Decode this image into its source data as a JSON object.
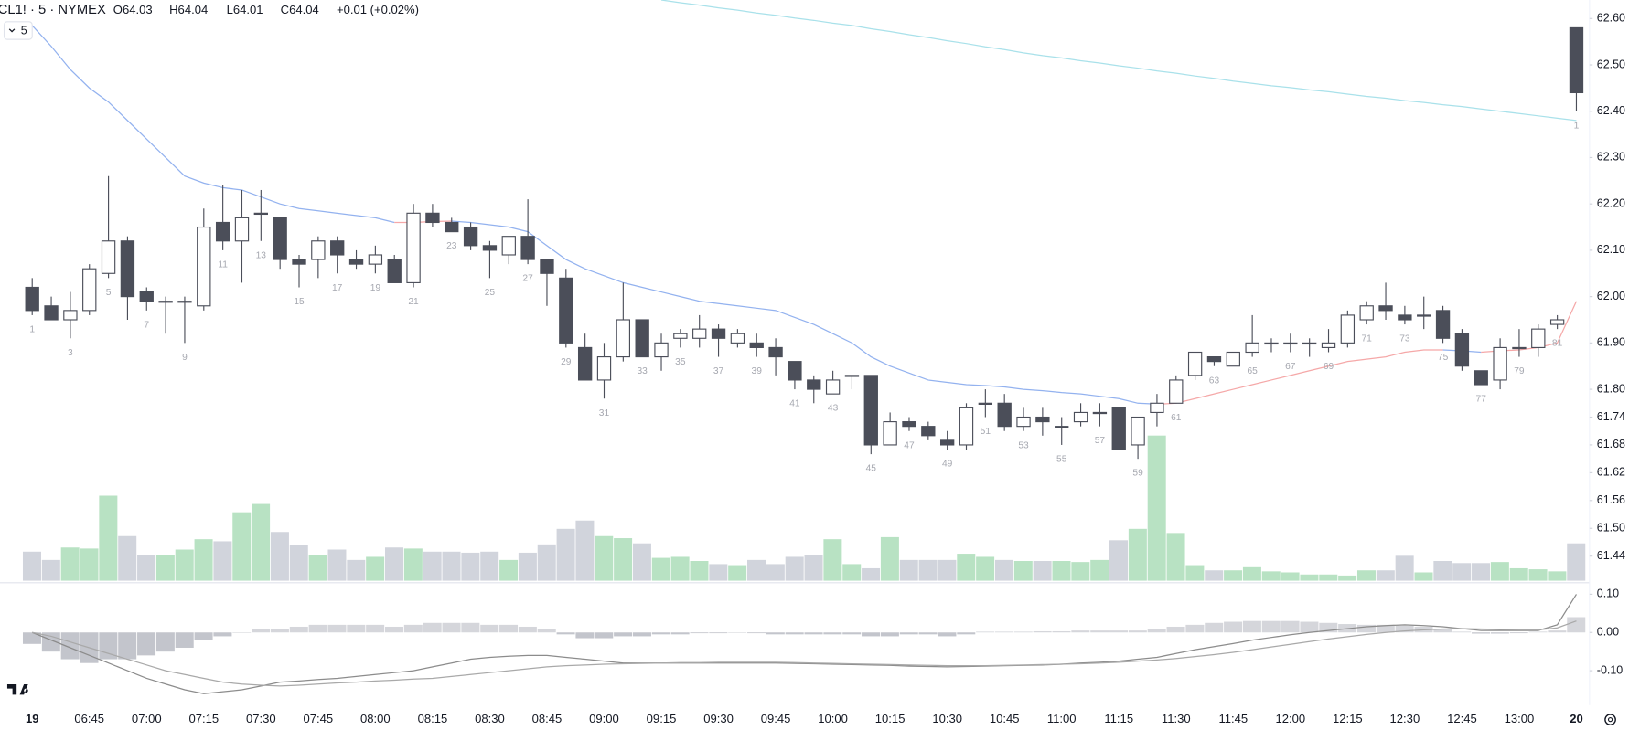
{
  "header": {
    "symbol": "CL1! · 5 · NYMEX",
    "open": "O64.03",
    "high": "H64.04",
    "low": "L64.01",
    "close": "C64.04",
    "change": "+0.01 (+0.02%)",
    "interval": "5"
  },
  "chart_data": [
    {
      "type": "candlestick",
      "categories": [
        "19",
        null,
        null,
        "06:45",
        null,
        null,
        "07:00",
        null,
        null,
        "07:15",
        null,
        null,
        "07:30",
        null,
        null,
        "07:45",
        null,
        null,
        "08:00",
        null,
        null,
        "08:15",
        null,
        null,
        "08:30",
        null,
        null,
        "08:45",
        null,
        null,
        "09:00",
        null,
        null,
        "09:15",
        null,
        null,
        "09:30",
        null,
        null,
        "09:45",
        null,
        null,
        "10:00",
        null,
        null,
        "10:15",
        null,
        null,
        "10:30",
        null,
        null,
        "10:45",
        null,
        null,
        "11:00",
        null,
        null,
        "11:15",
        null,
        null,
        "11:30",
        null,
        null,
        "11:45",
        null,
        null,
        "12:00",
        null,
        null,
        "12:15",
        null,
        null,
        "12:30",
        null,
        null,
        "12:45",
        null,
        null,
        "13:00",
        null,
        null,
        "20"
      ],
      "open": [
        62.02,
        61.98,
        61.95,
        61.97,
        62.05,
        62.12,
        62.01,
        61.99,
        61.99,
        61.98,
        62.16,
        62.12,
        62.18,
        62.17,
        62.08,
        62.08,
        62.12,
        62.08,
        62.07,
        62.08,
        62.03,
        62.18,
        62.16,
        62.15,
        62.11,
        62.09,
        62.13,
        62.08,
        62.04,
        61.89,
        61.82,
        61.87,
        61.95,
        61.87,
        61.91,
        61.91,
        61.93,
        61.9,
        61.9,
        61.89,
        61.86,
        61.82,
        61.79,
        61.83,
        61.83,
        61.68,
        61.73,
        61.72,
        61.69,
        61.68,
        61.77,
        61.77,
        61.72,
        61.74,
        61.72,
        61.73,
        61.75,
        61.76,
        61.68,
        61.75,
        61.77,
        61.83,
        61.87,
        61.85,
        61.88,
        61.9,
        61.9,
        61.9,
        61.89,
        61.9,
        61.95,
        61.98,
        61.96,
        61.96,
        61.97,
        61.92,
        61.84,
        61.82,
        61.89,
        61.89,
        61.94,
        62.58
      ],
      "high": [
        62.04,
        62.0,
        62.01,
        62.07,
        62.26,
        62.13,
        62.02,
        62.0,
        62.0,
        62.19,
        62.24,
        62.23,
        62.23,
        62.17,
        62.09,
        62.13,
        62.13,
        62.1,
        62.11,
        62.09,
        62.2,
        62.2,
        62.17,
        62.16,
        62.12,
        62.13,
        62.21,
        62.08,
        62.06,
        61.92,
        61.9,
        62.03,
        61.95,
        61.92,
        61.93,
        61.96,
        61.94,
        61.93,
        61.92,
        61.91,
        61.86,
        61.83,
        61.84,
        61.83,
        61.83,
        61.75,
        61.74,
        61.73,
        61.71,
        61.77,
        61.8,
        61.79,
        61.76,
        61.76,
        61.74,
        61.77,
        61.77,
        61.76,
        61.74,
        61.79,
        61.83,
        61.88,
        61.87,
        61.88,
        61.96,
        61.91,
        61.92,
        61.91,
        61.93,
        61.97,
        61.99,
        62.03,
        61.98,
        62.0,
        61.98,
        61.93,
        61.84,
        61.91,
        61.93,
        61.94,
        61.96,
        62.58
      ],
      "low": [
        61.96,
        61.95,
        61.91,
        61.96,
        62.04,
        61.95,
        61.97,
        61.92,
        61.9,
        61.97,
        62.1,
        62.03,
        62.12,
        62.06,
        62.02,
        62.04,
        62.05,
        62.06,
        62.05,
        62.03,
        62.02,
        62.15,
        62.14,
        62.1,
        62.04,
        62.07,
        62.07,
        61.98,
        61.89,
        61.82,
        61.78,
        61.86,
        61.87,
        61.84,
        61.89,
        61.89,
        61.87,
        61.89,
        61.87,
        61.83,
        61.8,
        61.77,
        61.79,
        61.8,
        61.66,
        61.68,
        61.71,
        61.69,
        61.67,
        61.67,
        61.74,
        61.71,
        61.71,
        61.7,
        61.68,
        61.72,
        61.72,
        61.67,
        61.65,
        61.72,
        61.77,
        61.82,
        61.85,
        61.85,
        61.87,
        61.88,
        61.88,
        61.87,
        61.88,
        61.89,
        61.94,
        61.95,
        61.94,
        61.93,
        61.9,
        61.84,
        61.81,
        61.8,
        61.87,
        61.87,
        61.93,
        62.4
      ],
      "close": [
        61.97,
        61.95,
        61.97,
        62.06,
        62.12,
        62.0,
        61.99,
        61.99,
        61.99,
        62.15,
        62.12,
        62.17,
        62.18,
        62.08,
        62.07,
        62.12,
        62.09,
        62.07,
        62.09,
        62.03,
        62.18,
        62.16,
        62.14,
        62.11,
        62.1,
        62.13,
        62.08,
        62.05,
        61.9,
        61.82,
        61.87,
        61.95,
        61.87,
        61.9,
        61.92,
        61.93,
        61.91,
        61.92,
        61.89,
        61.87,
        61.82,
        61.8,
        61.82,
        61.83,
        61.68,
        61.73,
        61.72,
        61.7,
        61.68,
        61.76,
        61.77,
        61.72,
        61.74,
        61.73,
        61.72,
        61.75,
        61.75,
        61.67,
        61.74,
        61.77,
        61.82,
        61.88,
        61.86,
        61.88,
        61.9,
        61.9,
        61.9,
        61.9,
        61.9,
        61.96,
        61.98,
        61.97,
        61.95,
        61.96,
        61.91,
        61.85,
        61.81,
        61.89,
        61.89,
        61.93,
        61.95,
        62.44
      ],
      "bar_numbers": [
        1,
        null,
        3,
        null,
        5,
        null,
        7,
        null,
        9,
        null,
        11,
        null,
        13,
        null,
        15,
        null,
        17,
        null,
        19,
        null,
        21,
        null,
        23,
        null,
        25,
        null,
        27,
        null,
        29,
        null,
        31,
        null,
        33,
        null,
        35,
        null,
        37,
        null,
        39,
        null,
        41,
        null,
        43,
        null,
        45,
        null,
        47,
        null,
        49,
        null,
        51,
        null,
        53,
        null,
        55,
        null,
        57,
        null,
        59,
        null,
        61,
        null,
        63,
        null,
        65,
        null,
        67,
        null,
        69,
        null,
        71,
        null,
        73,
        null,
        75,
        null,
        77,
        null,
        79,
        null,
        81,
        1
      ],
      "up_color": "#ffffff",
      "down_color": "#4b4e59",
      "volume": {
        "values": [
          28,
          20,
          32,
          31,
          82,
          43,
          25,
          25,
          30,
          40,
          38,
          66,
          74,
          47,
          34,
          25,
          30,
          20,
          23,
          32,
          31,
          28,
          28,
          27,
          28,
          20,
          27,
          35,
          50,
          58,
          43,
          41,
          36,
          22,
          23,
          19,
          16,
          15,
          20,
          16,
          23,
          25,
          40,
          16,
          12,
          42,
          20,
          20,
          20,
          26,
          23,
          20,
          19,
          19,
          19,
          18,
          20,
          39,
          50,
          140,
          46,
          15,
          10,
          10,
          13,
          9,
          8,
          6,
          6,
          5,
          10,
          10,
          24,
          8,
          19,
          17,
          17,
          18,
          12,
          11,
          9,
          36
        ],
        "up_color": "#b8e2c3",
        "down_color": "#d1d4dc"
      },
      "lines": [
        {
          "rising_color": "#f5a8a8",
          "falling_color": "#93b2ef",
          "values": [
            62.585,
            62.54,
            62.49,
            62.45,
            62.42,
            62.38,
            62.34,
            62.3,
            62.26,
            62.245,
            62.235,
            62.23,
            62.215,
            62.2,
            62.19,
            62.185,
            62.18,
            62.175,
            62.17,
            62.16,
            62.16,
            62.162,
            62.163,
            62.16,
            62.155,
            62.15,
            62.14,
            62.11,
            62.08,
            62.06,
            62.045,
            62.03,
            62.02,
            62.01,
            62.0,
            61.99,
            61.985,
            61.98,
            61.975,
            61.97,
            61.955,
            61.94,
            61.92,
            61.9,
            61.87,
            61.85,
            61.835,
            61.82,
            61.815,
            61.81,
            61.808,
            61.805,
            61.8,
            61.797,
            61.793,
            61.79,
            61.785,
            61.78,
            61.77,
            61.768,
            61.77,
            61.78,
            61.79,
            61.8,
            61.81,
            61.82,
            61.83,
            61.84,
            61.85,
            61.86,
            61.865,
            61.87,
            61.88,
            61.885,
            61.885,
            61.883,
            61.88,
            61.883,
            61.885,
            61.89,
            61.9,
            61.99
          ]
        },
        {
          "rising_color": "#a9e1ea",
          "falling_color": "#a9e1ea",
          "values": [
            null,
            null,
            null,
            null,
            null,
            null,
            null,
            null,
            null,
            null,
            null,
            null,
            null,
            null,
            null,
            null,
            null,
            null,
            null,
            null,
            null,
            null,
            null,
            null,
            null,
            null,
            null,
            null,
            null,
            null,
            null,
            null,
            null,
            62.64,
            62.634,
            62.629,
            62.623,
            62.618,
            62.612,
            62.607,
            62.601,
            62.596,
            62.59,
            62.585,
            62.578,
            62.572,
            62.565,
            62.559,
            62.552,
            62.546,
            62.539,
            62.533,
            62.526,
            62.52,
            62.515,
            62.509,
            62.504,
            62.498,
            62.493,
            62.487,
            62.482,
            62.476,
            62.471,
            62.465,
            62.46,
            62.455,
            62.451,
            62.446,
            62.442,
            62.437,
            62.432,
            62.428,
            62.423,
            62.419,
            62.414,
            62.41,
            62.405,
            62.4,
            62.395,
            62.39,
            62.385,
            62.38
          ]
        }
      ],
      "ylim": [
        61.387,
        62.64
      ],
      "yticks": [
        {
          "value": 62.6,
          "label": "62.60"
        },
        {
          "value": 62.5,
          "label": "62.50"
        },
        {
          "value": 62.4,
          "label": "62.40"
        },
        {
          "value": 62.3,
          "label": "62.30"
        },
        {
          "value": 62.2,
          "label": "62.20"
        },
        {
          "value": 62.1,
          "label": "62.10"
        },
        {
          "value": 62.0,
          "label": "62.00"
        },
        {
          "value": 61.9,
          "label": "61.90"
        },
        {
          "value": 61.8,
          "label": "61.80"
        },
        61.74,
        61.68,
        61.62,
        61.56,
        {
          "value": 61.5,
          "label": "61.50"
        },
        61.44
      ]
    },
    {
      "type": "macd",
      "ylim": [
        -0.19,
        0.13
      ],
      "yticks": [
        {
          "value": 0.1,
          "label": "0.10"
        },
        {
          "value": 0,
          "label": "0.00"
        },
        {
          "value": -0.1,
          "label": "-0.10"
        }
      ],
      "histogram": {
        "color": "#b9bbc3",
        "values": [
          -0.03,
          -0.05,
          -0.07,
          -0.08,
          -0.07,
          -0.07,
          -0.06,
          -0.05,
          -0.04,
          -0.02,
          -0.01,
          0.0,
          0.01,
          0.01,
          0.015,
          0.02,
          0.02,
          0.02,
          0.02,
          0.015,
          0.02,
          0.025,
          0.025,
          0.025,
          0.02,
          0.02,
          0.015,
          0.01,
          -0.005,
          -0.015,
          -0.015,
          -0.01,
          -0.01,
          -0.005,
          -0.005,
          -0.002,
          -0.002,
          0,
          -0.002,
          -0.005,
          -0.005,
          -0.005,
          -0.005,
          -0.005,
          -0.01,
          -0.01,
          -0.005,
          -0.005,
          -0.01,
          -0.005,
          0.002,
          0.002,
          0.002,
          0.003,
          0.003,
          0.005,
          0.005,
          0.005,
          0.005,
          0.01,
          0.015,
          0.02,
          0.025,
          0.028,
          0.03,
          0.03,
          0.03,
          0.028,
          0.025,
          0.022,
          0.02,
          0.02,
          0.018,
          0.015,
          0.01,
          0.002,
          -0.003,
          -0.003,
          -0.002,
          0.002,
          0.005,
          0.04
        ]
      },
      "lines": [
        {
          "color": "#8c8c8c",
          "values": [
            0.0,
            -0.02,
            -0.04,
            -0.06,
            -0.08,
            -0.1,
            -0.12,
            -0.135,
            -0.15,
            -0.16,
            -0.155,
            -0.15,
            -0.14,
            -0.13,
            -0.127,
            -0.123,
            -0.12,
            -0.115,
            -0.11,
            -0.105,
            -0.1,
            -0.09,
            -0.08,
            -0.07,
            -0.065,
            -0.062,
            -0.06,
            -0.06,
            -0.065,
            -0.07,
            -0.075,
            -0.08,
            -0.08,
            -0.08,
            -0.08,
            -0.08,
            -0.08,
            -0.08,
            -0.08,
            -0.08,
            -0.081,
            -0.082,
            -0.083,
            -0.084,
            -0.085,
            -0.086,
            -0.088,
            -0.089,
            -0.09,
            -0.089,
            -0.088,
            -0.087,
            -0.086,
            -0.085,
            -0.083,
            -0.08,
            -0.078,
            -0.075,
            -0.07,
            -0.065,
            -0.055,
            -0.045,
            -0.037,
            -0.029,
            -0.02,
            -0.013,
            -0.006,
            0.0,
            0.005,
            0.01,
            0.015,
            0.018,
            0.02,
            0.018,
            0.015,
            0.01,
            0.005,
            0.005,
            0.005,
            0.005,
            0.02,
            0.1
          ]
        },
        {
          "color": "#a9a9a9",
          "values": [
            0.0,
            -0.01,
            -0.025,
            -0.04,
            -0.055,
            -0.07,
            -0.085,
            -0.1,
            -0.11,
            -0.12,
            -0.13,
            -0.135,
            -0.138,
            -0.14,
            -0.138,
            -0.135,
            -0.132,
            -0.13,
            -0.127,
            -0.125,
            -0.122,
            -0.12,
            -0.115,
            -0.11,
            -0.105,
            -0.1,
            -0.095,
            -0.09,
            -0.087,
            -0.085,
            -0.083,
            -0.082,
            -0.081,
            -0.08,
            -0.079,
            -0.079,
            -0.078,
            -0.078,
            -0.078,
            -0.078,
            -0.079,
            -0.08,
            -0.081,
            -0.082,
            -0.083,
            -0.084,
            -0.085,
            -0.086,
            -0.087,
            -0.087,
            -0.087,
            -0.086,
            -0.085,
            -0.084,
            -0.083,
            -0.082,
            -0.08,
            -0.078,
            -0.075,
            -0.072,
            -0.068,
            -0.063,
            -0.058,
            -0.052,
            -0.045,
            -0.038,
            -0.031,
            -0.024,
            -0.017,
            -0.011,
            -0.005,
            0.0,
            0.004,
            0.007,
            0.009,
            0.01,
            0.009,
            0.008,
            0.007,
            0.007,
            0.012,
            0.03
          ]
        }
      ]
    }
  ]
}
